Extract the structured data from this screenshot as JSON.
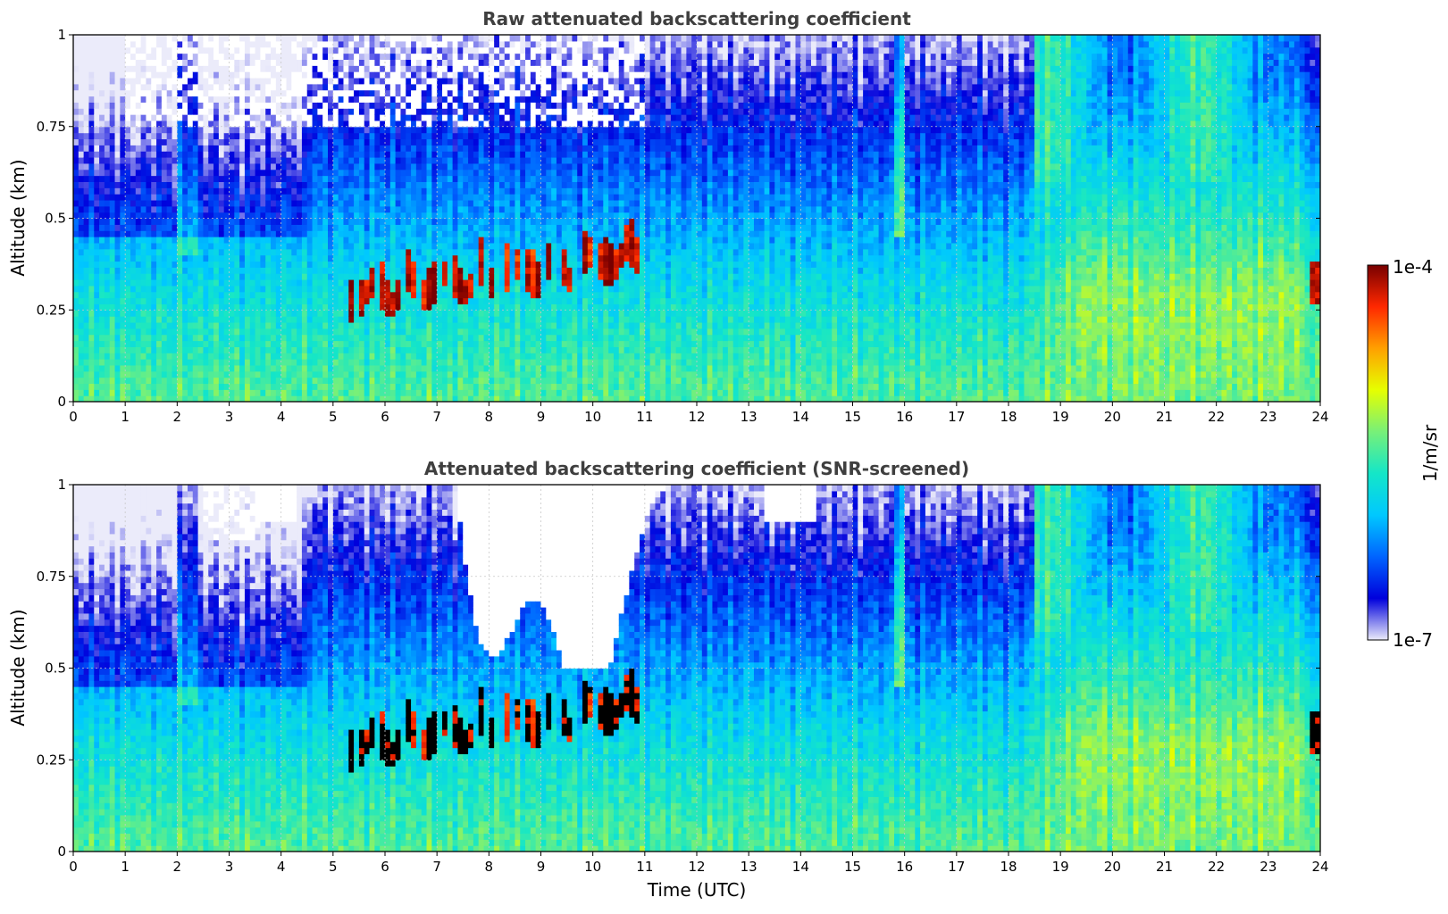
{
  "chart_data": [
    {
      "type": "heatmap",
      "title": "Raw attenuated backscattering coefficient",
      "xlabel": "",
      "ylabel": "Altitude (km)",
      "xlim": [
        0,
        24
      ],
      "ylim": [
        0,
        1
      ],
      "x_ticks": [
        "0",
        "1",
        "2",
        "3",
        "4",
        "5",
        "6",
        "7",
        "8",
        "9",
        "10",
        "11",
        "12",
        "13",
        "14",
        "15",
        "16",
        "17",
        "18",
        "19",
        "20",
        "21",
        "22",
        "23",
        "24"
      ],
      "y_ticks": [
        "0",
        "0.25",
        "0.5",
        "0.75",
        "1"
      ],
      "grid": true,
      "color_scale": "log",
      "screened": false,
      "features": [
        {
          "kind": "aerosol_layer",
          "x": [
            0,
            24
          ],
          "y": [
            0,
            0.3
          ]
        },
        {
          "kind": "cloud_layer",
          "x": [
            5.2,
            10.9
          ],
          "y": [
            0.25,
            0.45
          ]
        },
        {
          "kind": "cloud_layer",
          "x": [
            23.8,
            24
          ],
          "y": [
            0.27,
            0.37
          ]
        }
      ]
    },
    {
      "type": "heatmap",
      "title": "Attenuated backscattering coefficient (SNR-screened)",
      "xlabel": "Time (UTC)",
      "ylabel": "Altitude (km)",
      "xlim": [
        0,
        24
      ],
      "ylim": [
        0,
        1
      ],
      "x_ticks": [
        "0",
        "1",
        "2",
        "3",
        "4",
        "5",
        "6",
        "7",
        "8",
        "9",
        "10",
        "11",
        "12",
        "13",
        "14",
        "15",
        "16",
        "17",
        "18",
        "19",
        "20",
        "21",
        "22",
        "23",
        "24"
      ],
      "y_ticks": [
        "0",
        "0.25",
        "0.5",
        "0.75",
        "1"
      ],
      "grid": true,
      "color_scale": "log",
      "screened": true,
      "features": [
        {
          "kind": "aerosol_layer",
          "x": [
            0,
            24
          ],
          "y": [
            0,
            0.3
          ]
        },
        {
          "kind": "cloud_layer",
          "x": [
            5.2,
            10.9
          ],
          "y": [
            0.25,
            0.45
          ]
        },
        {
          "kind": "screened_region",
          "x": [
            7.0,
            11.4
          ],
          "y": [
            0.5,
            1
          ]
        }
      ]
    }
  ],
  "colorbar": {
    "label": "1/m/sr",
    "max_label": "1e-4",
    "min_label": "1e-7",
    "colors": [
      "#ebebfa",
      "#0000dc",
      "#0064ff",
      "#00c8ff",
      "#14e6c8",
      "#78f078",
      "#e6ff00",
      "#ffa000",
      "#ff2800",
      "#780000"
    ]
  }
}
